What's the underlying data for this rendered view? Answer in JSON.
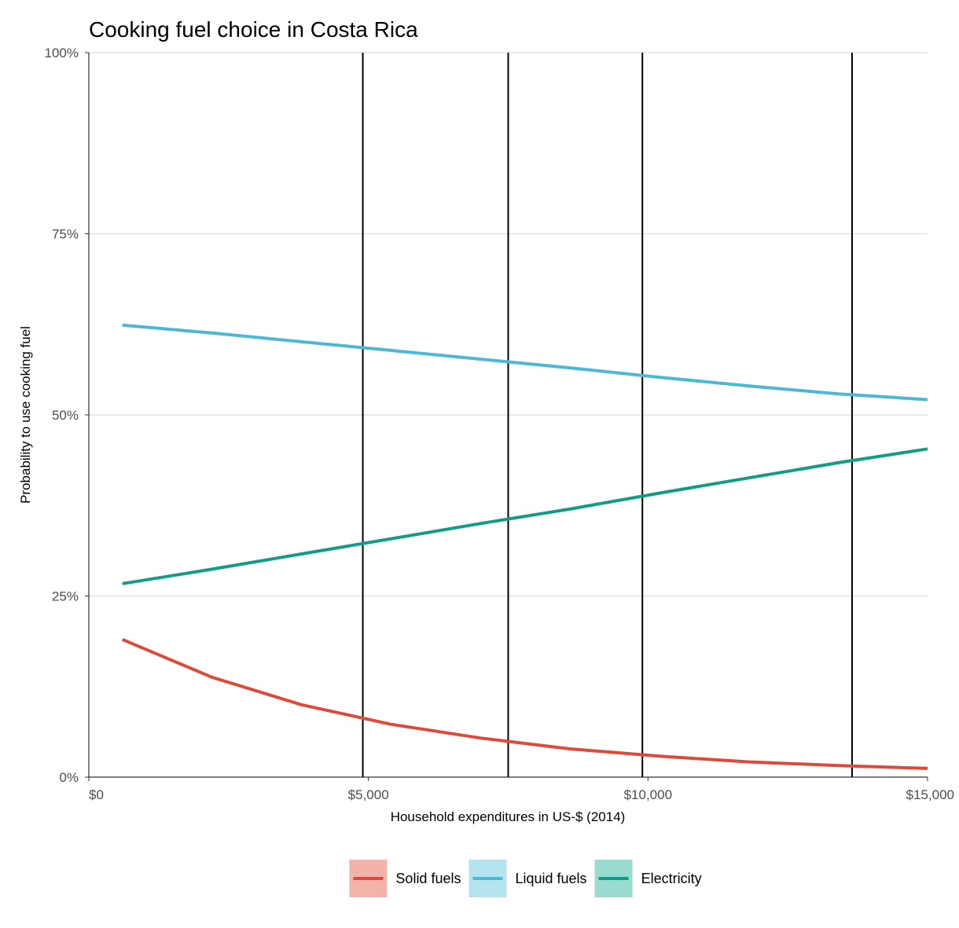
{
  "chart_data": {
    "type": "line",
    "title": "Cooking fuel choice in Costa Rica",
    "xlabel": "Household expenditures in US-$ (2014)",
    "ylabel": "Probability to use cooking fuel",
    "xlim": [
      0,
      15000
    ],
    "ylim": [
      0,
      100
    ],
    "x_ticks": [
      0,
      5000,
      10000,
      15000
    ],
    "x_tick_labels": [
      "$0",
      "$5,000",
      "$10,000",
      "$15,000"
    ],
    "y_ticks": [
      0,
      25,
      50,
      75,
      100
    ],
    "y_tick_labels": [
      "0%",
      "25%",
      "50%",
      "75%",
      "100%"
    ],
    "horizontal_grid": true,
    "vertical_reference_lines": [
      4900,
      7500,
      9900,
      13650
    ],
    "legend_position": "bottom",
    "series": [
      {
        "name": "Solid fuels",
        "color": "#dc4a3a",
        "legend_key_fill": "#f3b3ab",
        "x": [
          600,
          2200,
          3800,
          5400,
          7000,
          8600,
          10200,
          11800,
          13400,
          15000
        ],
        "y": [
          19.0,
          13.8,
          10.0,
          7.3,
          5.4,
          3.9,
          2.9,
          2.1,
          1.6,
          1.2
        ]
      },
      {
        "name": "Liquid fuels",
        "color": "#4db8d6",
        "legend_key_fill": "#b5e3ee",
        "x": [
          600,
          2200,
          3800,
          5400,
          7000,
          8600,
          10200,
          11800,
          13400,
          15000
        ],
        "y": [
          62.4,
          61.3,
          60.1,
          58.9,
          57.7,
          56.5,
          55.2,
          54.0,
          52.9,
          52.1
        ]
      },
      {
        "name": "Electricity",
        "color": "#129b86",
        "legend_key_fill": "#99dbcf",
        "x": [
          600,
          2200,
          3800,
          5400,
          7000,
          8600,
          10200,
          11800,
          13400,
          15000
        ],
        "y": [
          26.7,
          28.7,
          30.8,
          32.9,
          35.0,
          37.0,
          39.2,
          41.3,
          43.4,
          45.3
        ]
      }
    ]
  }
}
